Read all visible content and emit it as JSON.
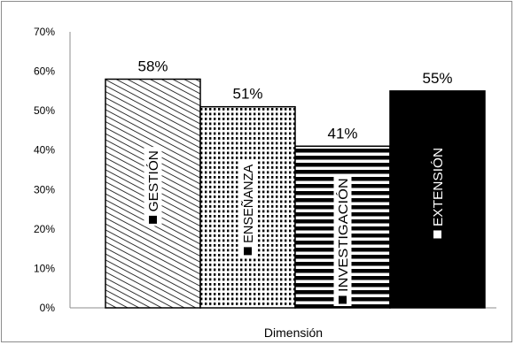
{
  "chart_data": {
    "type": "bar",
    "categories": [
      "GESTIÓN",
      "ENSEÑANZA",
      "INVESTIGACIÓN",
      "EXTENSIÓN"
    ],
    "values": [
      58,
      51,
      41,
      55
    ],
    "value_labels": [
      "58%",
      "51%",
      "41%",
      "55%"
    ],
    "xlabel": "Dimensión",
    "ylabel": "",
    "ylim": [
      0,
      70
    ],
    "yticks": [
      "0%",
      "10%",
      "20%",
      "30%",
      "40%",
      "50%",
      "60%",
      "70%"
    ],
    "grid": false,
    "legend": "in-bar labels",
    "patterns": [
      "diagonal-hatch",
      "dots",
      "horizontal-stripes",
      "solid-black"
    ]
  }
}
